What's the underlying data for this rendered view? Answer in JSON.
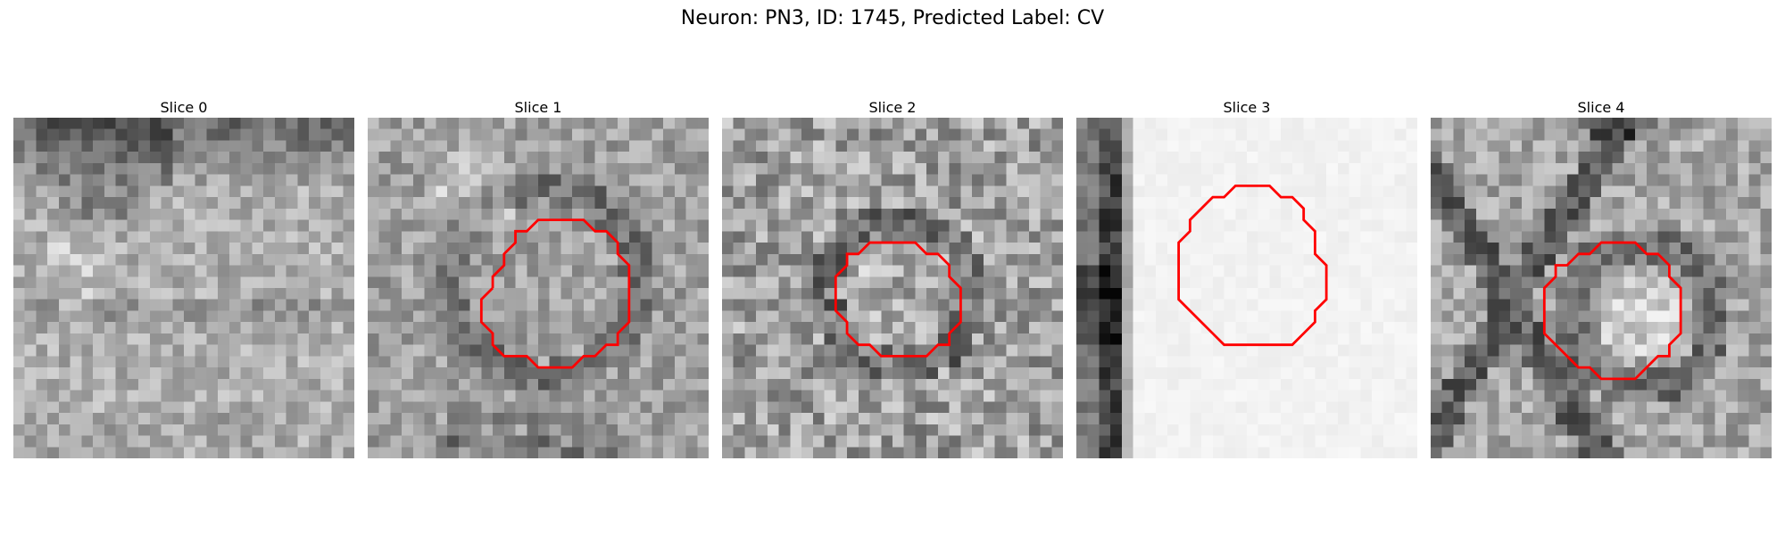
{
  "figure": {
    "title": "Neuron: PN3, ID: 1745, Predicted Label: CV",
    "contour_color": "#ff0000"
  },
  "panels": [
    {
      "title": "Slice 0",
      "has_contour": false,
      "tone": "mid-gray, dark band across top"
    },
    {
      "title": "Slice 1",
      "has_contour": true,
      "tone": "mid-gray with dark ring"
    },
    {
      "title": "Slice 2",
      "has_contour": true,
      "tone": "noisy gray"
    },
    {
      "title": "Slice 3",
      "has_contour": true,
      "tone": "mostly white, dark band on left"
    },
    {
      "title": "Slice 4",
      "has_contour": true,
      "tone": "gray with dark cross on left"
    }
  ]
}
